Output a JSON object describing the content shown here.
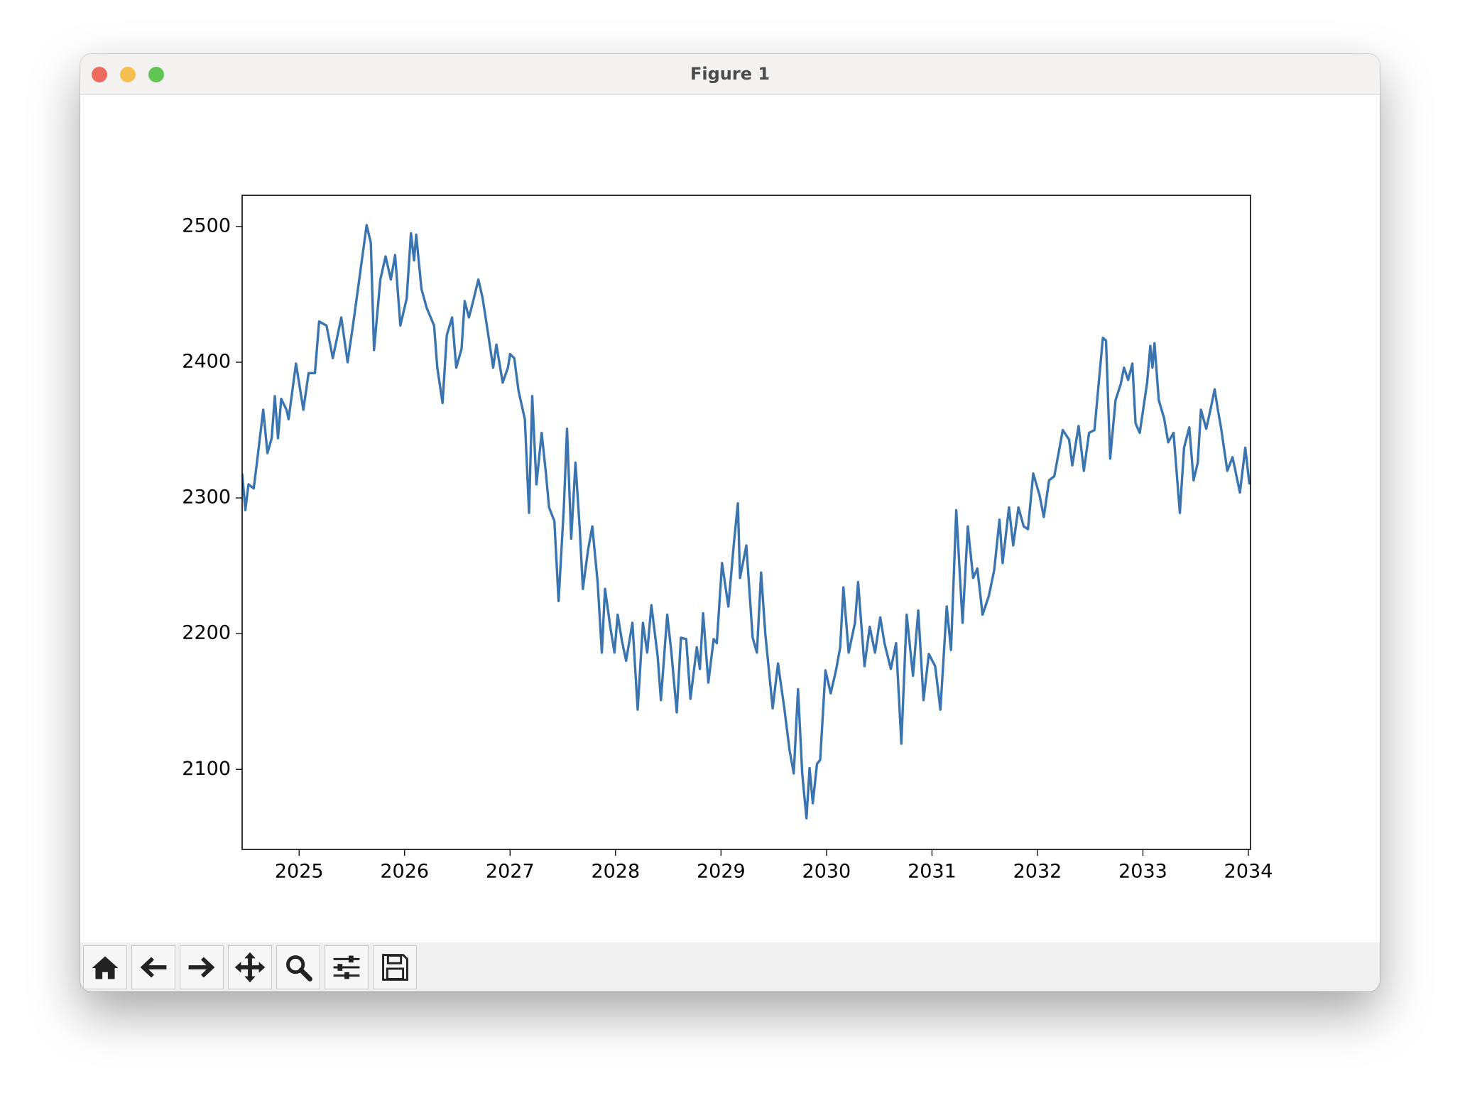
{
  "window": {
    "title": "Figure 1"
  },
  "chart_data": {
    "type": "line",
    "color": "#3a75b0",
    "xlim": [
      2024.46,
      2034.02
    ],
    "ylim": [
      2041,
      2523
    ],
    "xticks": [
      2025,
      2026,
      2027,
      2028,
      2029,
      2030,
      2031,
      2032,
      2033,
      2034
    ],
    "yticks": [
      2100,
      2200,
      2300,
      2400,
      2500
    ],
    "x": [
      2024.46,
      2024.49,
      2024.52,
      2024.57,
      2024.6,
      2024.66,
      2024.7,
      2024.74,
      2024.77,
      2024.8,
      2024.83,
      2024.88,
      2024.9,
      2024.97,
      2025.04,
      2025.09,
      2025.15,
      2025.19,
      2025.26,
      2025.32,
      2025.4,
      2025.46,
      2025.51,
      2025.57,
      2025.64,
      2025.68,
      2025.71,
      2025.77,
      2025.82,
      2025.87,
      2025.91,
      2025.96,
      2026.02,
      2026.06,
      2026.09,
      2026.11,
      2026.16,
      2026.21,
      2026.28,
      2026.31,
      2026.36,
      2026.4,
      2026.45,
      2026.49,
      2026.54,
      2026.57,
      2026.61,
      2026.65,
      2026.7,
      2026.74,
      2026.78,
      2026.84,
      2026.87,
      2026.93,
      2026.98,
      2027.0,
      2027.04,
      2027.08,
      2027.14,
      2027.18,
      2027.21,
      2027.25,
      2027.3,
      2027.34,
      2027.37,
      2027.42,
      2027.46,
      2027.51,
      2027.54,
      2027.58,
      2027.62,
      2027.66,
      2027.69,
      2027.74,
      2027.78,
      2027.83,
      2027.87,
      2027.9,
      2027.95,
      2027.99,
      2028.02,
      2028.06,
      2028.1,
      2028.16,
      2028.21,
      2028.26,
      2028.3,
      2028.34,
      2028.4,
      2028.43,
      2028.49,
      2028.53,
      2028.58,
      2028.62,
      2028.67,
      2028.71,
      2028.77,
      2028.8,
      2028.83,
      2028.88,
      2028.93,
      2028.96,
      2029.01,
      2029.07,
      2029.12,
      2029.16,
      2029.18,
      2029.24,
      2029.3,
      2029.34,
      2029.38,
      2029.42,
      2029.49,
      2029.54,
      2029.6,
      2029.65,
      2029.69,
      2029.73,
      2029.77,
      2029.81,
      2029.84,
      2029.87,
      2029.91,
      2029.94,
      2029.99,
      2030.04,
      2030.09,
      2030.13,
      2030.16,
      2030.21,
      2030.27,
      2030.3,
      2030.36,
      2030.41,
      2030.46,
      2030.51,
      2030.55,
      2030.61,
      2030.66,
      2030.71,
      2030.76,
      2030.82,
      2030.87,
      2030.92,
      2030.97,
      2031.03,
      2031.08,
      2031.14,
      2031.18,
      2031.23,
      2031.29,
      2031.34,
      2031.39,
      2031.43,
      2031.48,
      2031.54,
      2031.59,
      2031.64,
      2031.67,
      2031.73,
      2031.77,
      2031.82,
      2031.87,
      2031.91,
      2031.96,
      2032.02,
      2032.06,
      2032.11,
      2032.16,
      2032.2,
      2032.24,
      2032.3,
      2032.33,
      2032.39,
      2032.44,
      2032.49,
      2032.54,
      2032.62,
      2032.65,
      2032.69,
      2032.74,
      2032.79,
      2032.82,
      2032.86,
      2032.9,
      2032.93,
      2032.97,
      2033.04,
      2033.07,
      2033.09,
      2033.11,
      2033.15,
      2033.2,
      2033.24,
      2033.29,
      2033.35,
      2033.39,
      2033.44,
      2033.48,
      2033.52,
      2033.55,
      2033.6,
      2033.64,
      2033.68,
      2033.71,
      2033.74,
      2033.8,
      2033.85,
      2033.92,
      2033.97,
      2034.01
    ],
    "values": [
      2318,
      2291,
      2310,
      2307,
      2326,
      2365,
      2333,
      2344,
      2375,
      2344,
      2373,
      2365,
      2358,
      2399,
      2365,
      2392,
      2392,
      2430,
      2427,
      2403,
      2433,
      2400,
      2427,
      2461,
      2501,
      2488,
      2409,
      2461,
      2478,
      2461,
      2479,
      2427,
      2447,
      2495,
      2475,
      2494,
      2454,
      2440,
      2427,
      2396,
      2370,
      2420,
      2433,
      2396,
      2410,
      2445,
      2433,
      2445,
      2461,
      2447,
      2427,
      2396,
      2413,
      2385,
      2396,
      2406,
      2403,
      2379,
      2358,
      2289,
      2375,
      2310,
      2348,
      2318,
      2293,
      2283,
      2224,
      2293,
      2351,
      2270,
      2326,
      2278,
      2233,
      2262,
      2279,
      2238,
      2186,
      2233,
      2205,
      2186,
      2214,
      2195,
      2180,
      2208,
      2144,
      2208,
      2186,
      2221,
      2183,
      2151,
      2214,
      2186,
      2142,
      2197,
      2196,
      2152,
      2190,
      2174,
      2215,
      2164,
      2196,
      2193,
      2252,
      2220,
      2265,
      2296,
      2241,
      2265,
      2197,
      2186,
      2245,
      2200,
      2145,
      2178,
      2145,
      2114,
      2097,
      2159,
      2097,
      2064,
      2101,
      2075,
      2104,
      2107,
      2173,
      2156,
      2173,
      2190,
      2234,
      2186,
      2208,
      2238,
      2176,
      2205,
      2186,
      2212,
      2193,
      2174,
      2193,
      2119,
      2214,
      2169,
      2217,
      2151,
      2185,
      2176,
      2144,
      2220,
      2188,
      2291,
      2208,
      2279,
      2241,
      2248,
      2214,
      2228,
      2247,
      2284,
      2252,
      2293,
      2265,
      2293,
      2279,
      2277,
      2318,
      2302,
      2286,
      2313,
      2316,
      2333,
      2350,
      2343,
      2324,
      2353,
      2320,
      2348,
      2350,
      2418,
      2416,
      2329,
      2372,
      2384,
      2396,
      2387,
      2399,
      2355,
      2348,
      2385,
      2412,
      2396,
      2414,
      2372,
      2359,
      2341,
      2348,
      2289,
      2337,
      2352,
      2313,
      2326,
      2365,
      2351,
      2365,
      2380,
      2365,
      2352,
      2320,
      2330,
      2304,
      2337,
      2310
    ]
  }
}
